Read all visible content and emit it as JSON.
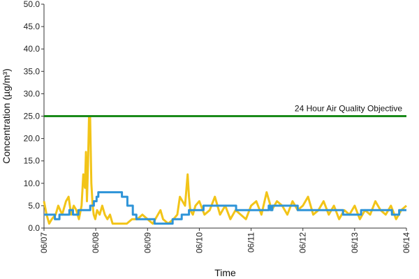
{
  "chart_data": {
    "type": "line",
    "title": "",
    "xlabel": "Time",
    "ylabel": "Concentration (µg/m³)",
    "ylim": [
      0,
      50
    ],
    "y_ticks": [
      "0.0",
      "5.0",
      "10.0",
      "15.0",
      "20.0",
      "25.0",
      "30.0",
      "35.0",
      "40.0",
      "45.0",
      "50.0"
    ],
    "x_ticks": [
      "06/07",
      "06/08",
      "06/09",
      "06/10",
      "06/11",
      "06/12",
      "06/13",
      "06/14"
    ],
    "grid": false,
    "legend": "none",
    "objective": {
      "label": "24 Hour Air Quality Objective",
      "value": 25,
      "color": "#1a8a1a"
    },
    "series": [
      {
        "color": "#f2c418",
        "x": [
          0,
          0.1,
          0.2,
          0.3,
          0.45,
          0.55,
          0.7,
          0.85,
          0.95,
          1.05,
          1.15,
          1.25,
          1.35,
          1.45,
          1.52,
          1.58,
          1.62,
          1.66,
          1.7,
          1.74,
          1.78,
          1.83,
          1.88,
          1.92,
          1.98,
          2.05,
          2.15,
          2.25,
          2.35,
          2.45,
          2.55,
          2.65,
          2.75,
          2.85,
          3.0,
          3.2,
          3.4,
          3.6,
          3.8,
          4.0,
          4.2,
          4.4,
          4.5,
          4.6,
          4.8,
          5.0,
          5.15,
          5.25,
          5.35,
          5.45,
          5.55,
          5.6,
          5.65,
          5.75,
          5.85,
          6.0,
          6.2,
          6.4,
          6.6,
          6.8,
          7.0,
          7.2,
          7.4,
          7.6,
          7.8,
          8.0,
          8.2,
          8.4,
          8.6,
          8.8,
          9.0,
          9.2,
          9.4,
          9.6,
          9.8,
          10.0,
          10.2,
          10.4,
          10.6,
          10.8,
          11.0,
          11.2,
          11.4,
          11.6,
          11.8,
          12.0,
          12.2,
          12.4,
          12.6,
          12.8,
          13.0,
          13.2,
          13.4,
          13.6,
          13.8,
          14.0
        ],
        "y": [
          6,
          3,
          1,
          2,
          3,
          5,
          3,
          6,
          7,
          3,
          5,
          4,
          2,
          5,
          12,
          9,
          17,
          6,
          14,
          25,
          25,
          10,
          5,
          3,
          2,
          4,
          3,
          5,
          3,
          2,
          3,
          1,
          1,
          1,
          1,
          1,
          2,
          2,
          3,
          2,
          1,
          3,
          4,
          2,
          1,
          2,
          3,
          7,
          6,
          5,
          12,
          7,
          4,
          3,
          5,
          6,
          3,
          4,
          7,
          3,
          5,
          2,
          4,
          3,
          2,
          5,
          6,
          3,
          8,
          4,
          6,
          5,
          3,
          6,
          4,
          5,
          7,
          3,
          4,
          6,
          3,
          5,
          2,
          4,
          3,
          5,
          2,
          4,
          3,
          6,
          4,
          3,
          5,
          2,
          4,
          5
        ],
        "x_scale": 7,
        "x_ref": "days"
      },
      {
        "color": "#2e94d8",
        "steps": [
          [
            0,
            3
          ],
          [
            0.6,
            2
          ],
          [
            0.85,
            3
          ],
          [
            1.4,
            4
          ],
          [
            1.6,
            3
          ],
          [
            1.9,
            4
          ],
          [
            2.55,
            5
          ],
          [
            2.75,
            6
          ],
          [
            2.9,
            7
          ],
          [
            3.0,
            8
          ],
          [
            4.1,
            8
          ],
          [
            4.3,
            7
          ],
          [
            4.6,
            5
          ],
          [
            4.9,
            3
          ],
          [
            5.1,
            2
          ],
          [
            6.0,
            2
          ],
          [
            6.1,
            1
          ],
          [
            7.0,
            1
          ],
          [
            7.1,
            2
          ],
          [
            7.6,
            3
          ],
          [
            8.0,
            4
          ],
          [
            8.6,
            4
          ],
          [
            8.8,
            5
          ],
          [
            10.4,
            5
          ],
          [
            10.6,
            4
          ],
          [
            12.3,
            4
          ],
          [
            12.4,
            5
          ],
          [
            12.5,
            4
          ],
          [
            12.6,
            5
          ],
          [
            13.9,
            5
          ],
          [
            14.0,
            4
          ],
          [
            16.4,
            4
          ],
          [
            16.5,
            3
          ],
          [
            17.5,
            4
          ],
          [
            19.0,
            4
          ],
          [
            19.2,
            3
          ],
          [
            19.6,
            4
          ],
          [
            20.0,
            4
          ]
        ],
        "x_scale": 20
      }
    ]
  }
}
